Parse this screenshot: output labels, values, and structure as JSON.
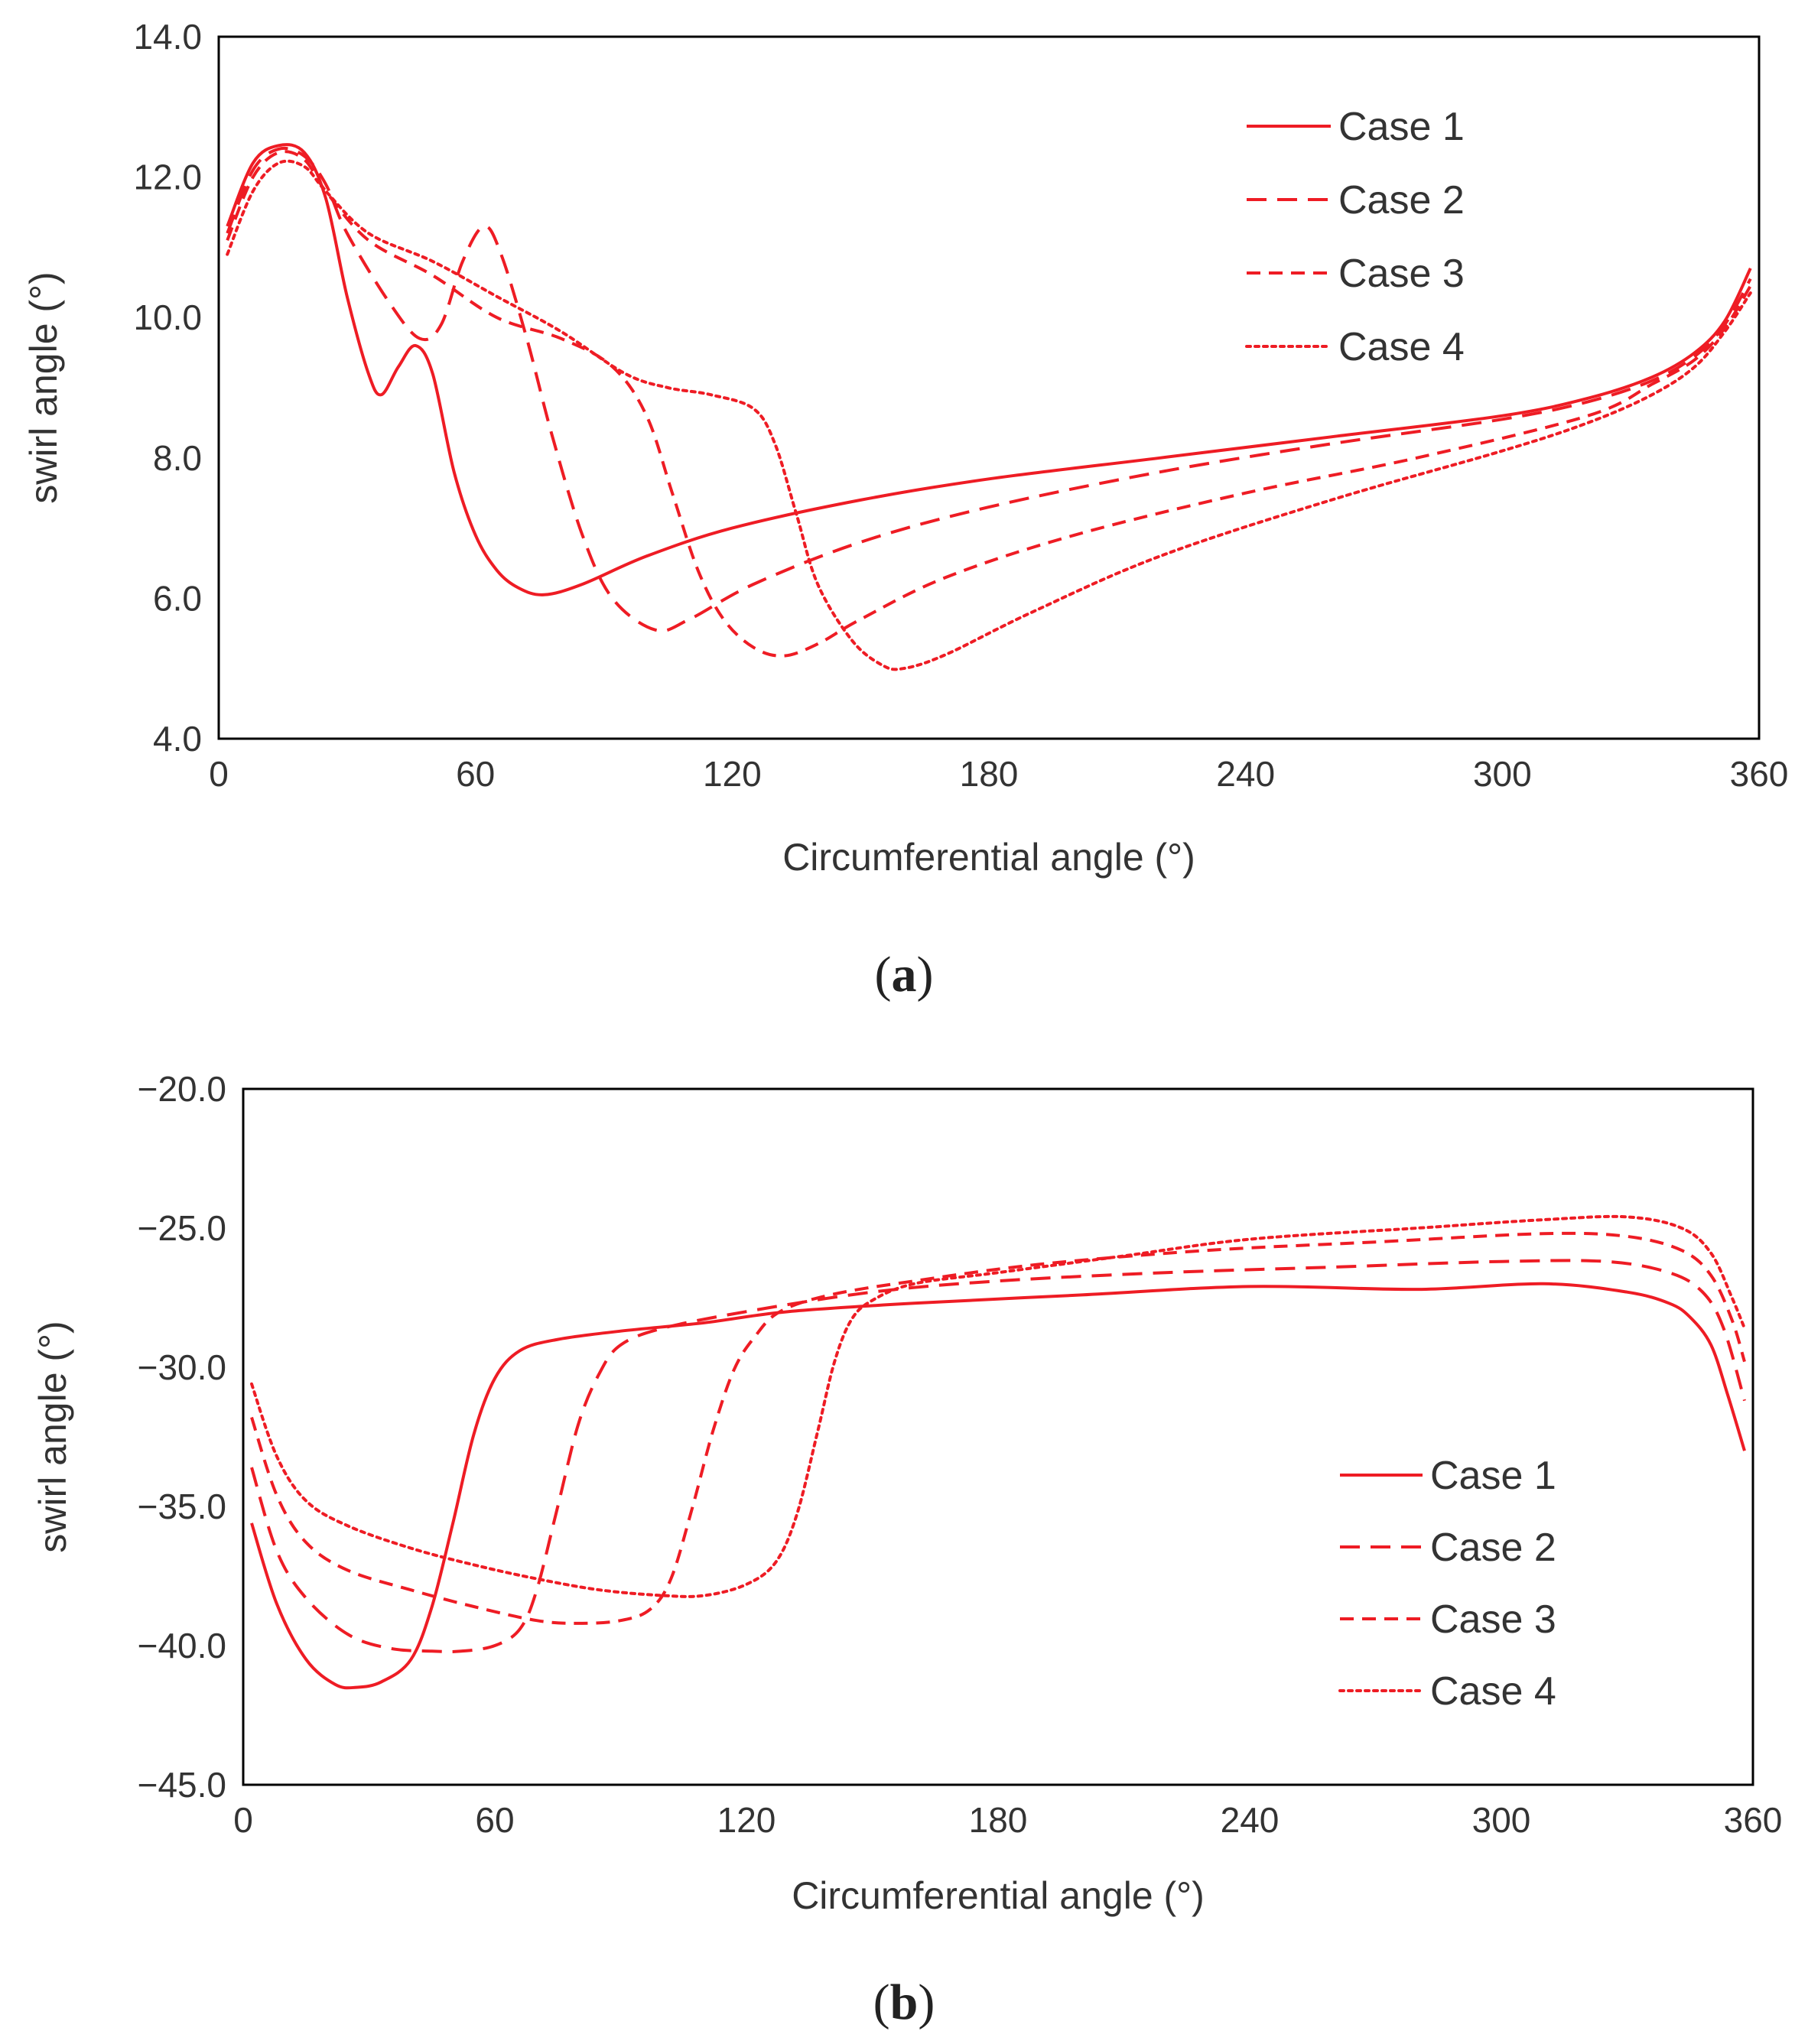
{
  "figure": {
    "label_a": "a",
    "label_b": "b"
  },
  "chart_data": [
    {
      "type": "line",
      "panel": "a",
      "xlabel": "Circumferential angle (°)",
      "ylabel": "swirl angle (°)",
      "xlim": [
        0,
        360
      ],
      "ylim": [
        4.0,
        14.0
      ],
      "xticks": [
        "0",
        "60",
        "120",
        "180",
        "240",
        "300",
        "360"
      ],
      "yticks": [
        "4.0",
        "6.0",
        "8.0",
        "10.0",
        "12.0",
        "14.0"
      ],
      "legend_position": "top-right",
      "color": "#ee1c24",
      "series": [
        {
          "name": "Case 1",
          "style": "solid",
          "x": [
            2,
            8,
            14,
            20,
            25,
            30,
            35,
            38,
            42,
            46,
            50,
            55,
            60,
            65,
            70,
            76,
            85,
            100,
            120,
            150,
            180,
            220,
            260,
            300,
            320,
            335,
            345,
            352,
            358
          ],
          "y": [
            11.3,
            12.2,
            12.45,
            12.35,
            11.7,
            10.3,
            9.2,
            8.9,
            9.3,
            9.6,
            9.2,
            7.8,
            6.9,
            6.4,
            6.15,
            6.05,
            6.2,
            6.6,
            7.0,
            7.4,
            7.7,
            8.0,
            8.3,
            8.6,
            8.85,
            9.15,
            9.5,
            9.95,
            10.7
          ]
        },
        {
          "name": "Case 2",
          "style": "dashed",
          "x": [
            2,
            8,
            14,
            20,
            25,
            30,
            40,
            47,
            52,
            57,
            62,
            66,
            72,
            78,
            85,
            92,
            102,
            110,
            125,
            150,
            180,
            220,
            260,
            300,
            320,
            335,
            345,
            352,
            358
          ],
          "y": [
            11.2,
            12.1,
            12.4,
            12.3,
            11.9,
            11.2,
            10.2,
            9.7,
            9.9,
            10.8,
            11.3,
            10.9,
            9.7,
            8.3,
            6.9,
            6.0,
            5.55,
            5.7,
            6.2,
            6.8,
            7.3,
            7.8,
            8.2,
            8.55,
            8.8,
            9.1,
            9.45,
            9.9,
            10.55
          ]
        },
        {
          "name": "Case 3",
          "style": "dashed-short",
          "x": [
            2,
            8,
            14,
            20,
            25,
            35,
            50,
            65,
            80,
            92,
            100,
            106,
            112,
            118,
            125,
            132,
            140,
            150,
            170,
            200,
            240,
            280,
            320,
            335,
            345,
            352,
            358
          ],
          "y": [
            11.1,
            12.0,
            12.35,
            12.25,
            11.8,
            11.1,
            10.6,
            10.0,
            9.7,
            9.3,
            8.6,
            7.5,
            6.4,
            5.7,
            5.3,
            5.18,
            5.35,
            5.7,
            6.3,
            6.9,
            7.5,
            8.0,
            8.6,
            9.05,
            9.4,
            9.85,
            10.45
          ]
        },
        {
          "name": "Case 4",
          "style": "dotted",
          "x": [
            2,
            8,
            14,
            20,
            25,
            35,
            50,
            65,
            80,
            95,
            105,
            115,
            125,
            130,
            135,
            140,
            148,
            155,
            160,
            170,
            190,
            220,
            260,
            300,
            320,
            335,
            345,
            352,
            358
          ],
          "y": [
            10.9,
            11.8,
            12.2,
            12.15,
            11.8,
            11.2,
            10.8,
            10.3,
            9.8,
            9.2,
            9.0,
            8.9,
            8.7,
            8.2,
            7.2,
            6.2,
            5.4,
            5.05,
            5.0,
            5.2,
            5.8,
            6.6,
            7.4,
            8.1,
            8.5,
            8.9,
            9.3,
            9.8,
            10.35
          ]
        }
      ]
    },
    {
      "type": "line",
      "panel": "b",
      "xlabel": "Circumferential angle (°)",
      "ylabel": "swirl angle (°)",
      "xlim": [
        0,
        360
      ],
      "ylim": [
        -45.0,
        -20.0
      ],
      "xticks": [
        "0",
        "60",
        "120",
        "180",
        "240",
        "300",
        "360"
      ],
      "yticks": [
        "−45.0",
        "−40.0",
        "−35.0",
        "−30.0",
        "−25.0",
        "−20.0"
      ],
      "legend_position": "right",
      "color": "#ee1c24",
      "series": [
        {
          "name": "Case 1",
          "style": "solid",
          "x": [
            2,
            8,
            15,
            22,
            27,
            33,
            40,
            45,
            50,
            55,
            60,
            66,
            75,
            90,
            110,
            130,
            160,
            200,
            240,
            280,
            310,
            330,
            340,
            345,
            350,
            354,
            358
          ],
          "y": [
            -35.6,
            -38.5,
            -40.5,
            -41.4,
            -41.5,
            -41.3,
            -40.5,
            -38.6,
            -35.6,
            -32.4,
            -30.4,
            -29.4,
            -29.0,
            -28.7,
            -28.4,
            -28.0,
            -27.7,
            -27.4,
            -27.1,
            -27.2,
            -27.0,
            -27.3,
            -27.7,
            -28.2,
            -29.2,
            -31.0,
            -33.0
          ]
        },
        {
          "name": "Case 2",
          "style": "dashed",
          "x": [
            2,
            8,
            15,
            25,
            35,
            45,
            52,
            60,
            66,
            70,
            75,
            80,
            85,
            90,
            100,
            120,
            150,
            180,
            220,
            260,
            300,
            325,
            340,
            348,
            353,
            358
          ],
          "y": [
            -33.6,
            -36.6,
            -38.3,
            -39.6,
            -40.1,
            -40.2,
            -40.2,
            -40.0,
            -39.4,
            -38.0,
            -35.0,
            -32.0,
            -30.2,
            -29.2,
            -28.6,
            -28.0,
            -27.3,
            -26.9,
            -26.6,
            -26.4,
            -26.2,
            -26.2,
            -26.6,
            -27.3,
            -28.6,
            -31.2
          ]
        },
        {
          "name": "Case 3",
          "style": "dashed-short",
          "x": [
            2,
            8,
            15,
            25,
            40,
            55,
            70,
            80,
            90,
            97,
            102,
            107,
            112,
            117,
            122,
            128,
            140,
            160,
            190,
            230,
            270,
            310,
            330,
            343,
            350,
            355,
            358
          ],
          "y": [
            -31.8,
            -34.6,
            -36.3,
            -37.3,
            -38.0,
            -38.6,
            -39.1,
            -39.2,
            -39.1,
            -38.7,
            -37.6,
            -35.1,
            -32.3,
            -30.1,
            -28.9,
            -28.0,
            -27.4,
            -26.9,
            -26.3,
            -25.8,
            -25.5,
            -25.2,
            -25.3,
            -25.8,
            -26.7,
            -28.3,
            -29.8
          ]
        },
        {
          "name": "Case 4",
          "style": "dotted",
          "x": [
            2,
            8,
            15,
            25,
            40,
            55,
            70,
            85,
            100,
            110,
            120,
            127,
            132,
            137,
            141,
            145,
            150,
            160,
            180,
            210,
            240,
            280,
            310,
            330,
            343,
            350,
            355,
            358
          ],
          "y": [
            -30.6,
            -33.2,
            -34.8,
            -35.7,
            -36.5,
            -37.1,
            -37.6,
            -38.0,
            -38.2,
            -38.2,
            -37.8,
            -37.0,
            -35.3,
            -32.3,
            -29.8,
            -28.3,
            -27.6,
            -27.0,
            -26.6,
            -26.0,
            -25.4,
            -25.0,
            -24.7,
            -24.6,
            -25.0,
            -25.9,
            -27.5,
            -28.6
          ]
        }
      ]
    }
  ]
}
